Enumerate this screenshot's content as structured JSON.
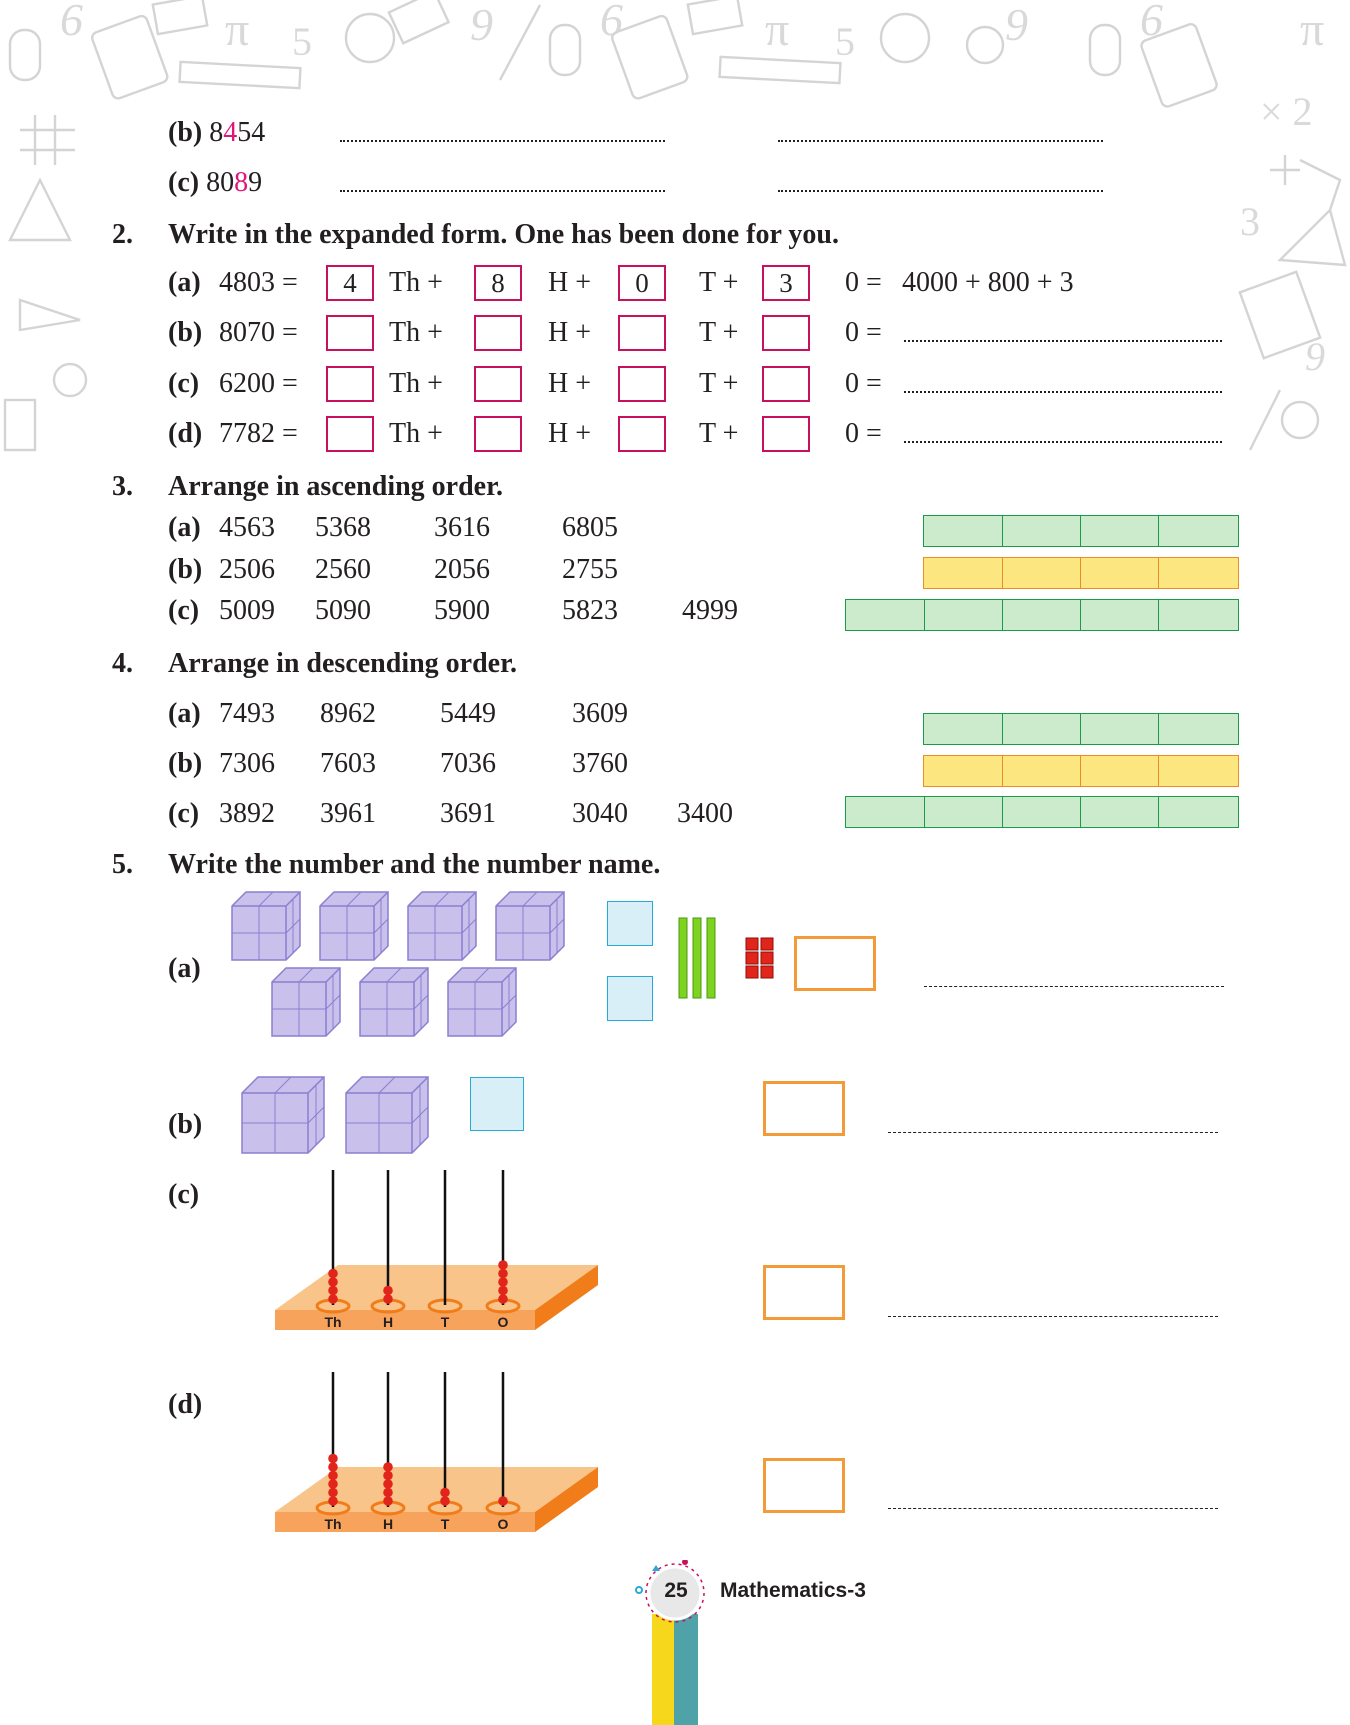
{
  "q1": {
    "b": {
      "label": "(b)",
      "pre": "8",
      "hl": "4",
      "post": "54"
    },
    "c": {
      "label": "(c)",
      "pre": "80",
      "hl": "8",
      "post": "9"
    }
  },
  "q2": {
    "num": "2.",
    "title": "Write in the expanded form. One has been done for you.",
    "th_label": "Th +",
    "h_label": "H +",
    "t_label": "T +",
    "o_label": "0 =",
    "rows": [
      {
        "label": "(a)",
        "number": "4803 =",
        "th": "4",
        "h": "8",
        "t": "0",
        "o": "3",
        "result": "4000 + 800 + 3"
      },
      {
        "label": "(b)",
        "number": "8070 =",
        "th": "",
        "h": "",
        "t": "",
        "o": "",
        "result": ""
      },
      {
        "label": "(c)",
        "number": "6200 =",
        "th": "",
        "h": "",
        "t": "",
        "o": "",
        "result": ""
      },
      {
        "label": "(d)",
        "number": "7782 =",
        "th": "",
        "h": "",
        "t": "",
        "o": "",
        "result": ""
      }
    ]
  },
  "q3": {
    "num": "3.",
    "title": "Arrange in ascending order.",
    "rows": [
      {
        "label": "(a)",
        "numbers": [
          "4563",
          "5368",
          "3616",
          "6805",
          ""
        ]
      },
      {
        "label": "(b)",
        "numbers": [
          "2506",
          "2560",
          "2056",
          "2755",
          ""
        ]
      },
      {
        "label": "(c)",
        "numbers": [
          "5009",
          "5090",
          "5900",
          "5823",
          "4999"
        ]
      }
    ]
  },
  "q4": {
    "num": "4.",
    "title": "Arrange in descending order.",
    "rows": [
      {
        "label": "(a)",
        "numbers": [
          "7493",
          "8962",
          "5449",
          "3609",
          ""
        ]
      },
      {
        "label": "(b)",
        "numbers": [
          "7306",
          "7603",
          "7036",
          "3760",
          ""
        ]
      },
      {
        "label": "(c)",
        "numbers": [
          "3892",
          "3961",
          "3691",
          "3040",
          "3400"
        ]
      }
    ]
  },
  "q5": {
    "num": "5.",
    "title": "Write the number and the number name.",
    "labels": {
      "a": "(a)",
      "b": "(b)",
      "c": "(c)",
      "d": "(d)"
    },
    "abacus_labels": [
      "Th",
      "H",
      "T",
      "O"
    ],
    "abacus_c_beads": [
      4,
      2,
      0,
      5
    ],
    "abacus_d_beads": [
      6,
      5,
      2,
      1
    ],
    "blocks_a": {
      "thousands": 7,
      "hundreds": 2,
      "tens": 3,
      "ones": 6
    },
    "blocks_b": {
      "thousands": 2,
      "hundreds": 1,
      "tens": 0,
      "ones": 0
    }
  },
  "footer": {
    "page": "25",
    "title": "Mathematics-3"
  },
  "colors": {
    "magenta": "#c8105e",
    "orange_box": "#f29b38",
    "green_strip": "#cbebcc",
    "yellow_strip": "#fce680",
    "cube": "#c9c1ec"
  }
}
